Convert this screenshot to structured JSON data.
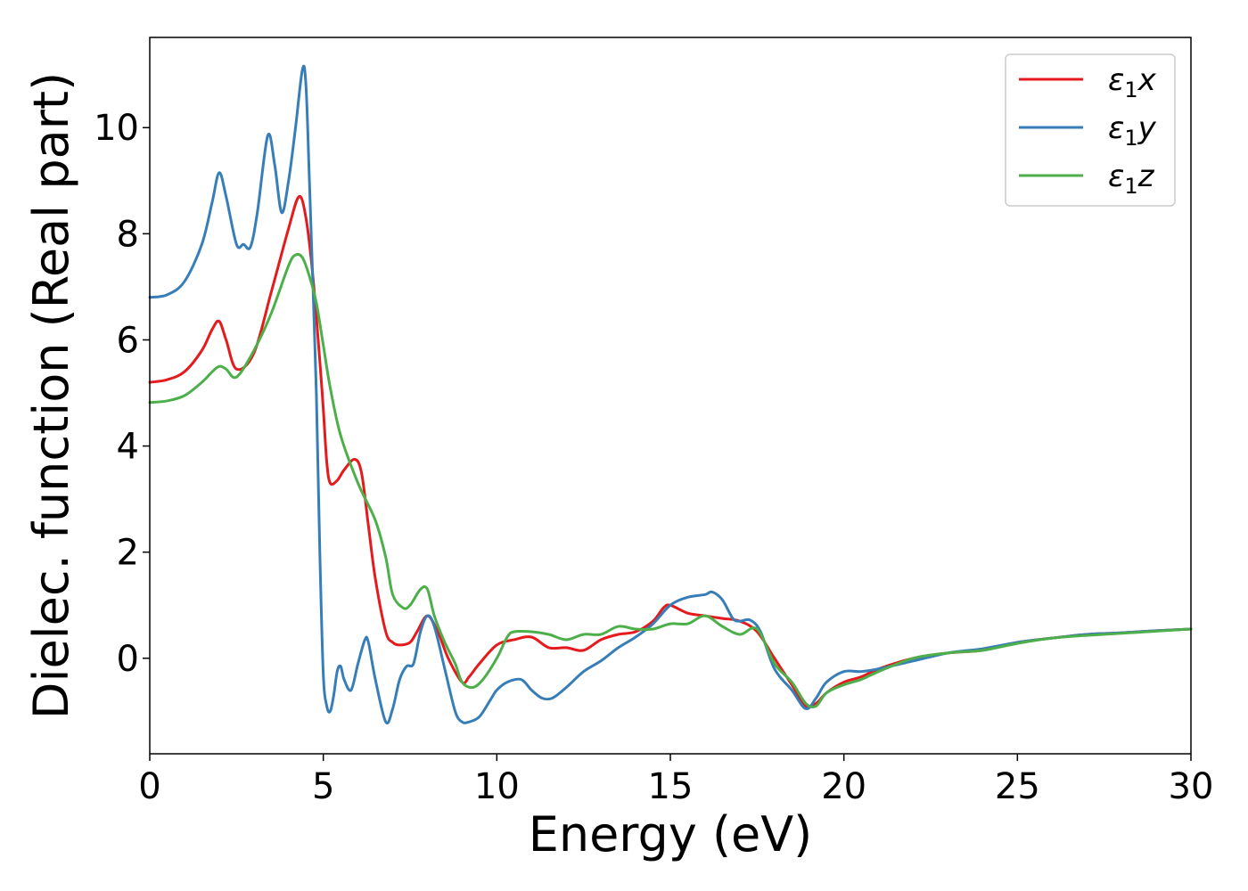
{
  "chart_data": {
    "type": "line",
    "title": "",
    "xlabel": "Energy (eV)",
    "ylabel": "Dielec. function (Real part)",
    "xlim": [
      0,
      30
    ],
    "ylim": [
      -1.8,
      11.7
    ],
    "xticks": [
      "0",
      "5",
      "10",
      "15",
      "20",
      "25",
      "30"
    ],
    "xtick_values": [
      0,
      5,
      10,
      15,
      20,
      25,
      30
    ],
    "yticks": [
      "0",
      "2",
      "4",
      "6",
      "8",
      "10"
    ],
    "ytick_values": [
      0,
      2,
      4,
      6,
      8,
      10
    ],
    "grid": false,
    "legend_position": "top-right",
    "series": [
      {
        "name": "ε₁x",
        "legend": {
          "base": "ε",
          "sub": "1",
          "var": "x"
        },
        "color": "#e41a1c",
        "x": [
          0,
          0.5,
          1.0,
          1.5,
          1.8,
          2.0,
          2.2,
          2.5,
          3.0,
          3.5,
          4.0,
          4.3,
          4.5,
          4.7,
          4.9,
          5.0,
          5.1,
          5.2,
          5.4,
          5.6,
          5.9,
          6.1,
          6.3,
          6.5,
          6.8,
          7.0,
          7.2,
          7.5,
          7.7,
          8.0,
          8.3,
          8.6,
          9.0,
          9.2,
          9.5,
          10.0,
          10.5,
          11.0,
          11.5,
          12.0,
          12.5,
          13.0,
          13.5,
          14.0,
          14.5,
          14.8,
          15.0,
          15.5,
          16.0,
          16.5,
          17.0,
          17.5,
          18.0,
          18.5,
          18.9,
          19.2,
          19.5,
          20.0,
          20.5,
          21.0,
          22.0,
          23.0,
          24.0,
          25.0,
          26.0,
          27.0,
          28.0,
          29.0,
          30.0
        ],
        "y": [
          5.2,
          5.25,
          5.4,
          5.8,
          6.2,
          6.35,
          6.0,
          5.45,
          5.75,
          6.9,
          8.1,
          8.7,
          8.3,
          7.2,
          5.6,
          4.7,
          3.7,
          3.3,
          3.35,
          3.55,
          3.75,
          3.5,
          2.5,
          1.5,
          0.5,
          0.3,
          0.25,
          0.3,
          0.5,
          0.8,
          0.5,
          0.0,
          -0.45,
          -0.35,
          -0.1,
          0.25,
          0.35,
          0.4,
          0.2,
          0.2,
          0.15,
          0.35,
          0.45,
          0.5,
          0.7,
          0.95,
          1.0,
          0.85,
          0.8,
          0.75,
          0.7,
          0.5,
          0.0,
          -0.5,
          -0.9,
          -0.85,
          -0.65,
          -0.45,
          -0.35,
          -0.2,
          0.0,
          0.1,
          0.15,
          0.3,
          0.38,
          0.45,
          0.48,
          0.52,
          0.55
        ]
      },
      {
        "name": "ε₁y",
        "legend": {
          "base": "ε",
          "sub": "1",
          "var": "y"
        },
        "color": "#377eb8",
        "x": [
          0,
          0.5,
          1.0,
          1.5,
          1.8,
          2.0,
          2.2,
          2.5,
          2.7,
          2.9,
          3.1,
          3.4,
          3.6,
          3.8,
          4.0,
          4.2,
          4.4,
          4.5,
          4.6,
          4.8,
          4.9,
          5.0,
          5.1,
          5.2,
          5.3,
          5.4,
          5.5,
          5.6,
          5.8,
          6.0,
          6.2,
          6.3,
          6.5,
          6.8,
          7.0,
          7.2,
          7.4,
          7.6,
          7.8,
          8.0,
          8.2,
          8.5,
          8.8,
          9.0,
          9.2,
          9.5,
          9.8,
          10.0,
          10.3,
          10.7,
          11.0,
          11.3,
          11.6,
          12.0,
          12.5,
          13.0,
          13.5,
          14.0,
          14.5,
          15.0,
          15.5,
          16.0,
          16.2,
          16.5,
          16.8,
          17.0,
          17.3,
          17.6,
          18.0,
          18.5,
          18.9,
          19.2,
          19.5,
          20.0,
          20.5,
          21.0,
          22.0,
          23.0,
          24.0,
          25.0,
          26.0,
          27.0,
          28.0,
          29.0,
          30.0
        ],
        "y": [
          6.8,
          6.85,
          7.1,
          7.8,
          8.6,
          9.15,
          8.7,
          7.8,
          7.8,
          7.75,
          8.4,
          9.85,
          9.3,
          8.4,
          9.0,
          10.0,
          11.1,
          10.8,
          9.0,
          5.0,
          2.0,
          -0.3,
          -0.9,
          -1.0,
          -0.7,
          -0.25,
          -0.15,
          -0.4,
          -0.6,
          -0.1,
          0.35,
          0.3,
          -0.4,
          -1.2,
          -0.95,
          -0.4,
          -0.15,
          -0.1,
          0.5,
          0.8,
          0.6,
          -0.2,
          -1.0,
          -1.2,
          -1.2,
          -1.1,
          -0.8,
          -0.6,
          -0.45,
          -0.4,
          -0.6,
          -0.75,
          -0.75,
          -0.55,
          -0.25,
          -0.05,
          0.2,
          0.4,
          0.65,
          1.0,
          1.15,
          1.2,
          1.25,
          1.1,
          0.75,
          0.7,
          0.72,
          0.5,
          -0.2,
          -0.6,
          -0.95,
          -0.75,
          -0.45,
          -0.25,
          -0.25,
          -0.2,
          -0.05,
          0.1,
          0.18,
          0.3,
          0.38,
          0.45,
          0.48,
          0.52,
          0.55
        ]
      },
      {
        "name": "ε₁z",
        "legend": {
          "base": "ε",
          "sub": "1",
          "var": "z"
        },
        "color": "#4daf4a",
        "x": [
          0,
          0.5,
          1.0,
          1.5,
          1.8,
          2.0,
          2.2,
          2.5,
          3.0,
          3.5,
          4.0,
          4.2,
          4.4,
          4.6,
          4.8,
          5.0,
          5.2,
          5.5,
          6.0,
          6.5,
          6.8,
          7.0,
          7.3,
          7.5,
          7.8,
          8.0,
          8.2,
          8.5,
          8.8,
          9.0,
          9.3,
          9.6,
          10.0,
          10.3,
          10.5,
          11.0,
          11.5,
          12.0,
          12.5,
          13.0,
          13.5,
          14.0,
          14.5,
          15.0,
          15.5,
          16.0,
          16.5,
          17.0,
          17.5,
          18.0,
          18.5,
          18.9,
          19.2,
          19.5,
          20.0,
          20.5,
          21.0,
          22.0,
          23.0,
          24.0,
          25.0,
          26.0,
          27.0,
          28.0,
          29.0,
          30.0
        ],
        "y": [
          4.82,
          4.85,
          4.95,
          5.2,
          5.4,
          5.5,
          5.45,
          5.3,
          5.8,
          6.5,
          7.4,
          7.6,
          7.55,
          7.2,
          6.7,
          5.9,
          5.1,
          4.2,
          3.3,
          2.6,
          1.9,
          1.2,
          0.95,
          1.0,
          1.3,
          1.3,
          0.8,
          0.3,
          -0.1,
          -0.45,
          -0.55,
          -0.4,
          0.0,
          0.4,
          0.5,
          0.5,
          0.45,
          0.35,
          0.45,
          0.45,
          0.6,
          0.55,
          0.55,
          0.65,
          0.65,
          0.8,
          0.6,
          0.45,
          0.55,
          -0.1,
          -0.45,
          -0.85,
          -0.9,
          -0.65,
          -0.5,
          -0.4,
          -0.25,
          0.0,
          0.1,
          0.15,
          0.28,
          0.38,
          0.43,
          0.47,
          0.51,
          0.55
        ]
      }
    ]
  }
}
